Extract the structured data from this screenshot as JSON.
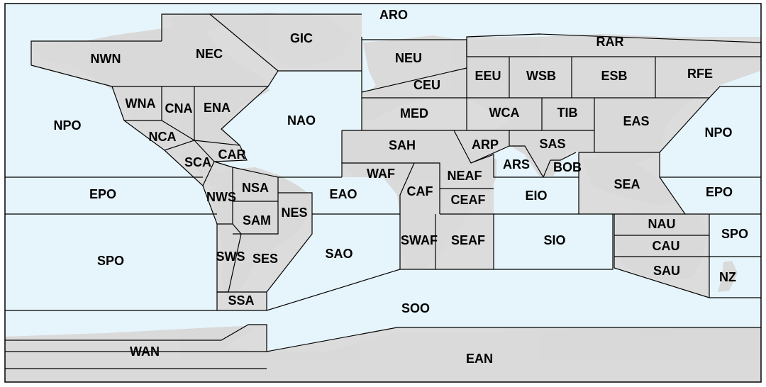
{
  "colors": {
    "ocean": "#e6f4fb",
    "land": "#d9d9d9",
    "region_land": "#dcdcdc",
    "boundary": "#000000"
  },
  "regions": [
    {
      "id": "ARO",
      "label": "ARO",
      "kind": "ocean"
    },
    {
      "id": "GIC",
      "label": "GIC",
      "kind": "land"
    },
    {
      "id": "NWN",
      "label": "NWN",
      "kind": "land"
    },
    {
      "id": "NEC",
      "label": "NEC",
      "kind": "land"
    },
    {
      "id": "WNA",
      "label": "WNA",
      "kind": "land"
    },
    {
      "id": "CNA",
      "label": "CNA",
      "kind": "land"
    },
    {
      "id": "ENA",
      "label": "ENA",
      "kind": "land"
    },
    {
      "id": "NCA",
      "label": "NCA",
      "kind": "land"
    },
    {
      "id": "SCA",
      "label": "SCA",
      "kind": "land"
    },
    {
      "id": "CAR",
      "label": "CAR",
      "kind": "land"
    },
    {
      "id": "NPO_W",
      "label": "NPO",
      "kind": "ocean"
    },
    {
      "id": "NAO",
      "label": "NAO",
      "kind": "ocean"
    },
    {
      "id": "EPO_W",
      "label": "EPO",
      "kind": "ocean"
    },
    {
      "id": "NWS",
      "label": "NWS",
      "kind": "land"
    },
    {
      "id": "NSA",
      "label": "NSA",
      "kind": "land"
    },
    {
      "id": "SAM",
      "label": "SAM",
      "kind": "land"
    },
    {
      "id": "NES",
      "label": "NES",
      "kind": "land"
    },
    {
      "id": "EAO",
      "label": "EAO",
      "kind": "ocean"
    },
    {
      "id": "SPO_W",
      "label": "SPO",
      "kind": "ocean"
    },
    {
      "id": "SWS",
      "label": "SWS",
      "kind": "land"
    },
    {
      "id": "SES",
      "label": "SES",
      "kind": "land"
    },
    {
      "id": "SAO",
      "label": "SAO",
      "kind": "ocean"
    },
    {
      "id": "SSA",
      "label": "SSA",
      "kind": "land"
    },
    {
      "id": "NEU",
      "label": "NEU",
      "kind": "land"
    },
    {
      "id": "CEU",
      "label": "CEU",
      "kind": "land"
    },
    {
      "id": "MED",
      "label": "MED",
      "kind": "land"
    },
    {
      "id": "SAH",
      "label": "SAH",
      "kind": "land"
    },
    {
      "id": "WAF",
      "label": "WAF",
      "kind": "land"
    },
    {
      "id": "CAF",
      "label": "CAF",
      "kind": "land"
    },
    {
      "id": "NEAF",
      "label": "NEAF",
      "kind": "land"
    },
    {
      "id": "CEAF",
      "label": "CEAF",
      "kind": "land"
    },
    {
      "id": "SWAF",
      "label": "SWAF",
      "kind": "land"
    },
    {
      "id": "SEAF",
      "label": "SEAF",
      "kind": "land"
    },
    {
      "id": "RAR",
      "label": "RAR",
      "kind": "land"
    },
    {
      "id": "EEU",
      "label": "EEU",
      "kind": "land"
    },
    {
      "id": "WSB",
      "label": "WSB",
      "kind": "land"
    },
    {
      "id": "ESB",
      "label": "ESB",
      "kind": "land"
    },
    {
      "id": "RFE",
      "label": "RFE",
      "kind": "land"
    },
    {
      "id": "WCA",
      "label": "WCA",
      "kind": "land"
    },
    {
      "id": "TIB",
      "label": "TIB",
      "kind": "land"
    },
    {
      "id": "EAS",
      "label": "EAS",
      "kind": "land"
    },
    {
      "id": "ARP",
      "label": "ARP",
      "kind": "land"
    },
    {
      "id": "SAS",
      "label": "SAS",
      "kind": "land"
    },
    {
      "id": "ARS",
      "label": "ARS",
      "kind": "ocean"
    },
    {
      "id": "BOB",
      "label": "BOB",
      "kind": "ocean"
    },
    {
      "id": "EIO",
      "label": "EIO",
      "kind": "ocean"
    },
    {
      "id": "SIO",
      "label": "SIO",
      "kind": "ocean"
    },
    {
      "id": "SEA",
      "label": "SEA",
      "kind": "land"
    },
    {
      "id": "NPO_E",
      "label": "NPO",
      "kind": "ocean"
    },
    {
      "id": "EPO_E",
      "label": "EPO",
      "kind": "ocean"
    },
    {
      "id": "NAU",
      "label": "NAU",
      "kind": "land"
    },
    {
      "id": "CAU",
      "label": "CAU",
      "kind": "land"
    },
    {
      "id": "SAU",
      "label": "SAU",
      "kind": "land"
    },
    {
      "id": "SPO_E",
      "label": "SPO",
      "kind": "ocean"
    },
    {
      "id": "NZ",
      "label": "NZ",
      "kind": "land"
    },
    {
      "id": "SOO",
      "label": "SOO",
      "kind": "ocean"
    },
    {
      "id": "WAN",
      "label": "WAN",
      "kind": "land"
    },
    {
      "id": "EAN",
      "label": "EAN",
      "kind": "land"
    }
  ]
}
